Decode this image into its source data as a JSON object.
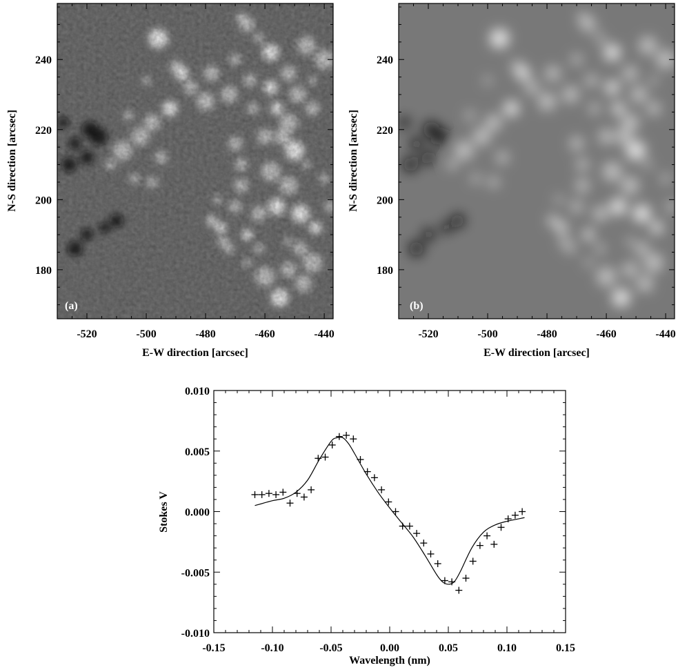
{
  "chart_data": [
    {
      "type": "heatmap",
      "panel_label": "(a)",
      "xlabel": "E-W direction [arcsec]",
      "ylabel": "N-S direction [arcsec]",
      "xlim": [
        -530,
        -437
      ],
      "ylim": [
        166,
        256
      ],
      "xticks": [
        -520,
        -500,
        -480,
        -460,
        -440
      ],
      "yticks": [
        180,
        200,
        220,
        240
      ],
      "colormap": "grayscale",
      "background_color": "#6c6c6c"
    },
    {
      "type": "heatmap",
      "panel_label": "(b)",
      "xlabel": "E-W direction [arcsec]",
      "ylabel": "N-S direction [arcsec]",
      "xlim": [
        -530,
        -437
      ],
      "ylim": [
        166,
        256
      ],
      "xticks": [
        -520,
        -500,
        -480,
        -460,
        -440
      ],
      "yticks": [
        180,
        200,
        220,
        240
      ],
      "colormap": "grayscale",
      "background_color": "#787878"
    },
    {
      "type": "scatter",
      "xlabel": "Wavelength (nm)",
      "ylabel": "Stokes V",
      "xlim": [
        -0.15,
        0.15
      ],
      "ylim": [
        -0.01,
        0.01
      ],
      "xticks": [
        "-0.15",
        "-0.10",
        "-0.05",
        "0.00",
        "0.05",
        "0.10",
        "0.15"
      ],
      "yticks": [
        "0.010",
        "0.005",
        "0.000",
        "-0.005",
        "-0.010"
      ],
      "observed": {
        "marker": "plus",
        "x": [
          -0.115,
          -0.109,
          -0.103,
          -0.097,
          -0.091,
          -0.085,
          -0.079,
          -0.073,
          -0.067,
          -0.061,
          -0.055,
          -0.049,
          -0.043,
          -0.037,
          -0.031,
          -0.025,
          -0.019,
          -0.013,
          -0.007,
          -0.001,
          0.005,
          0.011,
          0.017,
          0.023,
          0.029,
          0.035,
          0.041,
          0.047,
          0.053,
          0.059,
          0.065,
          0.071,
          0.077,
          0.083,
          0.089,
          0.095,
          0.101,
          0.107,
          0.113
        ],
        "y": [
          0.0014,
          0.0014,
          0.0015,
          0.0014,
          0.0016,
          0.0007,
          0.0015,
          0.0012,
          0.0018,
          0.0044,
          0.0045,
          0.0055,
          0.0062,
          0.0063,
          0.006,
          0.0043,
          0.0033,
          0.0028,
          0.0018,
          0.0008,
          0.0,
          -0.0012,
          -0.0012,
          -0.0018,
          -0.0026,
          -0.0035,
          -0.0043,
          -0.0057,
          -0.0058,
          -0.0065,
          -0.0055,
          -0.0041,
          -0.0028,
          -0.002,
          -0.0027,
          -0.0013,
          -0.0006,
          -0.0003,
          0.0
        ]
      },
      "fit": {
        "style": "line",
        "x": [
          -0.115,
          -0.1,
          -0.09,
          -0.08,
          -0.07,
          -0.06,
          -0.05,
          -0.045,
          -0.04,
          -0.035,
          -0.03,
          -0.02,
          -0.01,
          0.0,
          0.01,
          0.02,
          0.03,
          0.04,
          0.045,
          0.05,
          0.055,
          0.06,
          0.07,
          0.08,
          0.09,
          0.1,
          0.115
        ],
        "y": [
          0.0005,
          0.0009,
          0.0011,
          0.0016,
          0.0026,
          0.0043,
          0.0058,
          0.0061,
          0.0061,
          0.0056,
          0.0048,
          0.0031,
          0.0016,
          0.0003,
          -0.0009,
          -0.0021,
          -0.0036,
          -0.0052,
          -0.0058,
          -0.006,
          -0.0058,
          -0.005,
          -0.003,
          -0.0017,
          -0.0011,
          -0.0008,
          -0.0005
        ]
      }
    }
  ]
}
